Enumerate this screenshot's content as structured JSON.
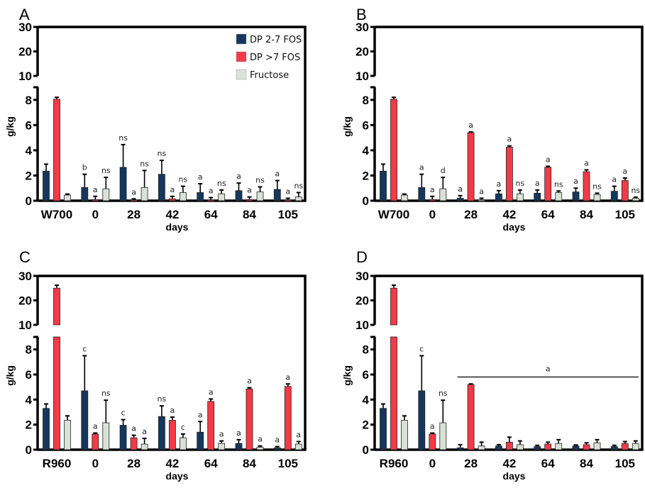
{
  "chart_data": [
    {
      "type": "bar",
      "panel": "A",
      "ylabel": "g/kg",
      "xlabel": "days",
      "categories": [
        "W700",
        "0",
        "28",
        "42",
        "64",
        "84",
        "105"
      ],
      "y_ticks_lower": [
        0,
        2,
        4,
        6,
        8
      ],
      "y_ticks_upper": [
        10,
        20,
        30
      ],
      "ylim": [
        0,
        30
      ],
      "y_axis_break": [
        9,
        10
      ],
      "legend": {
        "position": "top-right",
        "entries": [
          "DP 2-7 FOS",
          "DP >7 FOS",
          "Fructose"
        ]
      },
      "series": [
        {
          "name": "DP 2-7 FOS",
          "values": [
            2.35,
            1.05,
            2.65,
            2.1,
            0.65,
            0.8,
            0.9
          ],
          "errors": [
            0.55,
            1.05,
            1.8,
            1.1,
            0.7,
            0.6,
            0.7
          ],
          "labels": [
            "",
            "b",
            "ns",
            "ns",
            "a",
            "a",
            "a"
          ]
        },
        {
          "name": "DP >7 FOS",
          "values": [
            8.05,
            0.1,
            0.05,
            0.15,
            0.05,
            0.1,
            0.05
          ],
          "errors": [
            0.15,
            0.25,
            0.1,
            0.2,
            0.2,
            0.2,
            0.15
          ],
          "labels": [
            "",
            "a",
            "a",
            "a",
            "a",
            "a",
            "a"
          ]
        },
        {
          "name": "Fructose",
          "values": [
            0.45,
            0.95,
            1.05,
            0.65,
            0.55,
            0.7,
            0.3
          ],
          "errors": [
            0.08,
            0.9,
            1.35,
            0.5,
            0.3,
            0.4,
            0.35
          ],
          "labels": [
            "",
            "ns",
            "ns",
            "ns",
            "ns",
            "ns",
            "ns"
          ]
        }
      ]
    },
    {
      "type": "bar",
      "panel": "B",
      "ylabel": "g/kg",
      "xlabel": "days",
      "categories": [
        "W700",
        "0",
        "28",
        "42",
        "64",
        "84",
        "105"
      ],
      "y_ticks_lower": [
        0,
        2,
        4,
        6,
        8
      ],
      "y_ticks_upper": [
        10,
        20,
        30
      ],
      "ylim": [
        0,
        30
      ],
      "y_axis_break": [
        9,
        10
      ],
      "series": [
        {
          "name": "DP 2-7 FOS",
          "values": [
            2.35,
            1.05,
            0.2,
            0.55,
            0.6,
            0.7,
            0.75
          ],
          "errors": [
            0.55,
            1.05,
            0.2,
            0.25,
            0.25,
            0.3,
            0.4
          ],
          "labels": [
            "",
            "a",
            "a",
            "a",
            "a",
            "a",
            "a"
          ]
        },
        {
          "name": "DP >7 FOS",
          "values": [
            8.05,
            0.1,
            5.4,
            4.25,
            2.65,
            2.3,
            1.6
          ],
          "errors": [
            0.15,
            0.25,
            0.05,
            0.1,
            0.08,
            0.15,
            0.2
          ],
          "labels": [
            "",
            "a",
            "a",
            "a",
            "a",
            "a",
            "a"
          ]
        },
        {
          "name": "Fructose",
          "values": [
            0.45,
            0.95,
            0.05,
            0.55,
            0.65,
            0.5,
            0.2
          ],
          "errors": [
            0.08,
            0.9,
            0.15,
            0.3,
            0.12,
            0.1,
            0.08
          ],
          "labels": [
            "",
            "d",
            "a",
            "ns",
            "ns",
            "ns",
            "ns"
          ]
        }
      ]
    },
    {
      "type": "bar",
      "panel": "C",
      "ylabel": "g/kg",
      "xlabel": "days",
      "categories": [
        "R960",
        "0",
        "28",
        "42",
        "64",
        "84",
        "105"
      ],
      "y_ticks_lower": [
        0,
        2,
        4,
        6,
        8
      ],
      "y_ticks_upper": [
        10,
        20,
        30
      ],
      "ylim": [
        0,
        30
      ],
      "y_axis_break": [
        9,
        10
      ],
      "series": [
        {
          "name": "DP 2-7 FOS",
          "values": [
            3.3,
            4.7,
            1.95,
            2.65,
            1.4,
            0.5,
            0.15
          ],
          "errors": [
            0.35,
            2.8,
            0.45,
            0.85,
            0.85,
            0.3,
            0.1
          ],
          "labels": [
            "",
            "c",
            "c",
            "ns",
            "a",
            "a",
            "a"
          ]
        },
        {
          "name": "DP >7 FOS",
          "values": [
            25,
            1.25,
            0.95,
            2.35,
            3.85,
            4.85,
            5.05
          ],
          "errors": [
            1.2,
            0.08,
            0.2,
            0.25,
            0.2,
            0.1,
            0.2
          ],
          "labels": [
            "",
            "a",
            "a",
            "a",
            "a",
            "a",
            "a"
          ]
        },
        {
          "name": "Fructose",
          "values": [
            2.35,
            2.15,
            0.45,
            0.95,
            0.5,
            0.2,
            0.45
          ],
          "errors": [
            0.35,
            1.8,
            0.45,
            0.3,
            0.2,
            0.1,
            0.2
          ],
          "labels": [
            "",
            "ns",
            "a",
            "c",
            "a",
            "a",
            "a"
          ]
        }
      ]
    },
    {
      "type": "bar",
      "panel": "D",
      "ylabel": "g/kg",
      "xlabel": "days",
      "categories": [
        "R960",
        "0",
        "28",
        "42",
        "64",
        "84",
        "105"
      ],
      "y_ticks_lower": [
        0,
        2,
        4,
        6,
        8
      ],
      "y_ticks_upper": [
        10,
        20,
        30
      ],
      "ylim": [
        0,
        30
      ],
      "y_axis_break": [
        9,
        10
      ],
      "span_annotation": {
        "from": "28",
        "to": "105",
        "y": 5.8,
        "label": "a"
      },
      "series": [
        {
          "name": "DP 2-7 FOS",
          "values": [
            3.3,
            4.7,
            0.15,
            0.3,
            0.25,
            0.3,
            0.25
          ],
          "errors": [
            0.35,
            2.8,
            0.25,
            0.1,
            0.1,
            0.08,
            0.1
          ],
          "labels": [
            "",
            "c",
            "",
            "",
            "",
            "",
            ""
          ]
        },
        {
          "name": "DP >7 FOS",
          "values": [
            25,
            1.25,
            5.2,
            0.6,
            0.45,
            0.4,
            0.5
          ],
          "errors": [
            1.2,
            0.08,
            0.05,
            0.4,
            0.15,
            0.15,
            0.15
          ],
          "labels": [
            "",
            "a",
            "",
            "",
            "",
            "",
            ""
          ]
        },
        {
          "name": "Fructose",
          "values": [
            2.35,
            2.15,
            0.3,
            0.4,
            0.5,
            0.55,
            0.5
          ],
          "errors": [
            0.35,
            1.8,
            0.3,
            0.3,
            0.3,
            0.25,
            0.2
          ],
          "labels": [
            "",
            "ns",
            "",
            "",
            "",
            "",
            ""
          ]
        }
      ]
    }
  ],
  "colors": {
    "DP 2-7 FOS": "#15375e",
    "DP >7 FOS": "#f43a47",
    "Fructose": "#d9e2d6"
  }
}
